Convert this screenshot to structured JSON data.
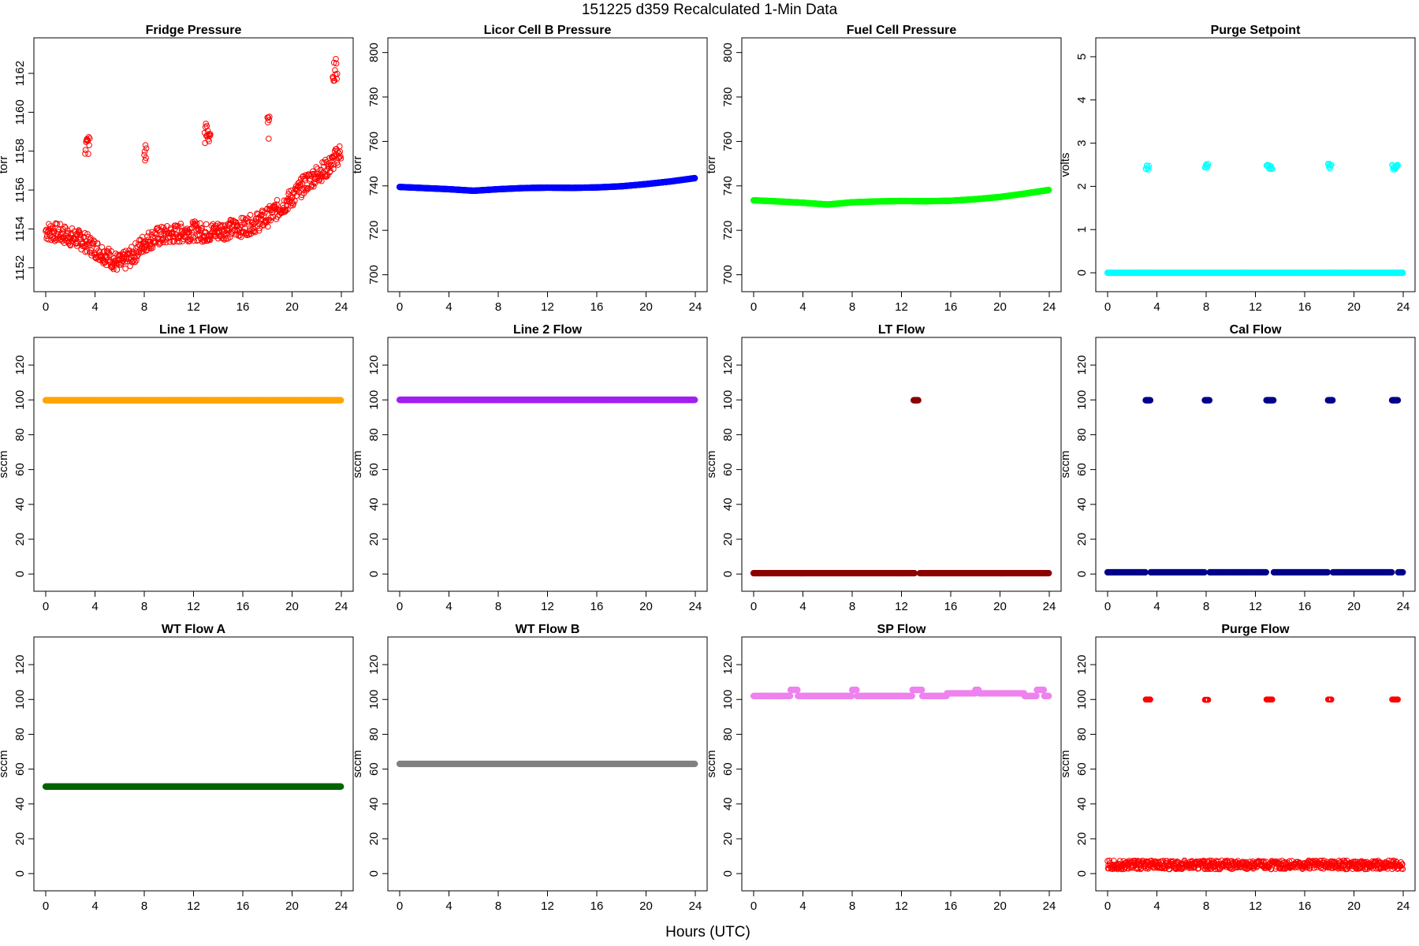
{
  "suptitle": "151225   d359   Recalculated 1-Min Data",
  "xlabel": "Hours (UTC)",
  "chart_data": [
    {
      "type": "scatter",
      "title": "Fridge Pressure",
      "ylabel": "torr",
      "color": "#ff0000",
      "marker": "open-circle",
      "xlim": [
        0,
        24
      ],
      "ylim": [
        1151.3,
        1163.3
      ],
      "xticks": [
        0,
        4,
        8,
        12,
        16,
        20,
        24
      ],
      "yticks": [
        1152,
        1154,
        1156,
        1158,
        1160,
        1162
      ],
      "series": [
        {
          "x": [
            0,
            1,
            2,
            3,
            4,
            5,
            6,
            7,
            8,
            9,
            10,
            11,
            12,
            13,
            14,
            15,
            16,
            17,
            18,
            19,
            20,
            21,
            22,
            23,
            23.5,
            24
          ],
          "y": [
            1153.9,
            1153.8,
            1153.6,
            1153.4,
            1153.0,
            1152.6,
            1152.2,
            1152.6,
            1153.3,
            1153.6,
            1153.7,
            1153.8,
            1153.9,
            1153.8,
            1153.9,
            1154.0,
            1154.1,
            1154.3,
            1154.6,
            1155.1,
            1155.6,
            1156.3,
            1156.8,
            1157.2,
            1157.6,
            1158.0
          ]
        },
        {
          "x": [
            3.2,
            3.6
          ],
          "y": [
            1158.3,
            1158.3
          ]
        },
        {
          "x": [
            8.0,
            8.2
          ],
          "y": [
            1157.9,
            1157.9
          ]
        },
        {
          "x": [
            12.9,
            13.4
          ],
          "y": [
            1158.9,
            1158.9
          ]
        },
        {
          "x": [
            18.0,
            18.2
          ],
          "y": [
            1159.2,
            1159.2
          ]
        },
        {
          "x": [
            23.3,
            23.7
          ],
          "y": [
            1162.2,
            1162.2
          ]
        }
      ]
    },
    {
      "type": "scatter",
      "title": "Licor Cell B Pressure",
      "ylabel": "torr",
      "color": "#0000ff",
      "marker": "filled",
      "xlim": [
        0,
        24
      ],
      "ylim": [
        697,
        802
      ],
      "xticks": [
        0,
        4,
        8,
        12,
        16,
        20,
        24
      ],
      "yticks": [
        700,
        720,
        740,
        760,
        780,
        800
      ],
      "series": [
        {
          "x": [
            0,
            2,
            4,
            6,
            8,
            10,
            12,
            14,
            16,
            18,
            20,
            22,
            24
          ],
          "y": [
            739.5,
            739,
            738.5,
            737.8,
            738.5,
            739,
            739.2,
            739.1,
            739.3,
            739.8,
            740.8,
            742,
            743.5
          ]
        }
      ]
    },
    {
      "type": "scatter",
      "title": "Fuel Cell Pressure",
      "ylabel": "torr",
      "color": "#00ff00",
      "marker": "filled",
      "xlim": [
        0,
        24
      ],
      "ylim": [
        697,
        802
      ],
      "xticks": [
        0,
        4,
        8,
        12,
        16,
        20,
        24
      ],
      "yticks": [
        700,
        720,
        740,
        760,
        780,
        800
      ],
      "series": [
        {
          "x": [
            0,
            2,
            4,
            6,
            8,
            10,
            12,
            14,
            16,
            18,
            20,
            22,
            24
          ],
          "y": [
            733.5,
            733,
            732.4,
            731.6,
            732.6,
            733,
            733.2,
            733.1,
            733.3,
            734,
            735,
            736.5,
            738.2
          ]
        }
      ]
    },
    {
      "type": "scatter",
      "title": "Purge Setpoint",
      "ylabel": "volts",
      "color": "#00ffff",
      "marker": "mixed",
      "xlim": [
        0,
        24
      ],
      "ylim": [
        -0.2,
        5.2
      ],
      "xticks": [
        0,
        4,
        8,
        12,
        16,
        20,
        24
      ],
      "yticks": [
        0,
        1,
        2,
        3,
        4,
        5
      ],
      "series": [
        {
          "x": [
            0,
            24
          ],
          "y": [
            0,
            0
          ]
        },
        {
          "x": [
            3.1,
            3.4
          ],
          "y": [
            2.45,
            2.45
          ]
        },
        {
          "x": [
            7.9,
            8.2
          ],
          "y": [
            2.47,
            2.47
          ]
        },
        {
          "x": [
            12.9,
            13.4
          ],
          "y": [
            2.44,
            2.44
          ]
        },
        {
          "x": [
            17.9,
            18.2
          ],
          "y": [
            2.47,
            2.47
          ]
        },
        {
          "x": [
            23.1,
            23.6
          ],
          "y": [
            2.44,
            2.44
          ]
        }
      ]
    },
    {
      "type": "scatter",
      "title": "Line 1 Flow",
      "ylabel": "sccm",
      "color": "#ffa500",
      "marker": "filled",
      "xlim": [
        0,
        24
      ],
      "ylim": [
        -4,
        130
      ],
      "xticks": [
        0,
        4,
        8,
        12,
        16,
        20,
        24
      ],
      "yticks": [
        0,
        20,
        40,
        60,
        80,
        100,
        120
      ],
      "series": [
        {
          "x": [
            0,
            24
          ],
          "y": [
            99.8,
            99.8
          ]
        }
      ]
    },
    {
      "type": "scatter",
      "title": "Line 2 Flow",
      "ylabel": "sccm",
      "color": "#a020f0",
      "marker": "filled",
      "xlim": [
        0,
        24
      ],
      "ylim": [
        -4,
        130
      ],
      "xticks": [
        0,
        4,
        8,
        12,
        16,
        20,
        24
      ],
      "yticks": [
        0,
        20,
        40,
        60,
        80,
        100,
        120
      ],
      "series": [
        {
          "x": [
            0,
            24
          ],
          "y": [
            100,
            100
          ]
        }
      ]
    },
    {
      "type": "scatter",
      "title": "LT Flow",
      "ylabel": "sccm",
      "color": "#8b0000",
      "marker": "filled",
      "xlim": [
        0,
        24
      ],
      "ylim": [
        -4,
        130
      ],
      "xticks": [
        0,
        4,
        8,
        12,
        16,
        20,
        24
      ],
      "yticks": [
        0,
        20,
        40,
        60,
        80,
        100,
        120
      ],
      "series": [
        {
          "x": [
            0,
            13.1
          ],
          "y": [
            0.5,
            0.5
          ]
        },
        {
          "x": [
            13.5,
            24
          ],
          "y": [
            0.5,
            0.5
          ]
        },
        {
          "x": [
            13.0,
            13.4
          ],
          "y": [
            99.8,
            99.8
          ]
        }
      ]
    },
    {
      "type": "scatter",
      "title": "Cal Flow",
      "ylabel": "sccm",
      "color": "#00008b",
      "marker": "filled",
      "xlim": [
        0,
        24
      ],
      "ylim": [
        -4,
        130
      ],
      "xticks": [
        0,
        4,
        8,
        12,
        16,
        20,
        24
      ],
      "yticks": [
        0,
        20,
        40,
        60,
        80,
        100,
        120
      ],
      "series": [
        {
          "x": [
            0,
            3.1
          ],
          "y": [
            1,
            1
          ]
        },
        {
          "x": [
            3.5,
            7.9
          ],
          "y": [
            1,
            1
          ]
        },
        {
          "x": [
            8.3,
            12.9
          ],
          "y": [
            1,
            1
          ]
        },
        {
          "x": [
            13.5,
            17.9
          ],
          "y": [
            1,
            1
          ]
        },
        {
          "x": [
            18.3,
            23.1
          ],
          "y": [
            1,
            1
          ]
        },
        {
          "x": [
            23.6,
            24
          ],
          "y": [
            1,
            1
          ]
        },
        {
          "x": [
            3.1,
            3.5
          ],
          "y": [
            99.8,
            99.8
          ]
        },
        {
          "x": [
            7.9,
            8.3
          ],
          "y": [
            99.8,
            99.8
          ]
        },
        {
          "x": [
            12.9,
            13.5
          ],
          "y": [
            99.8,
            99.8
          ]
        },
        {
          "x": [
            17.9,
            18.3
          ],
          "y": [
            99.8,
            99.8
          ]
        },
        {
          "x": [
            23.1,
            23.6
          ],
          "y": [
            99.8,
            99.8
          ]
        }
      ]
    },
    {
      "type": "scatter",
      "title": "WT Flow A",
      "ylabel": "sccm",
      "color": "#006400",
      "marker": "filled",
      "xlim": [
        0,
        24
      ],
      "ylim": [
        -4,
        130
      ],
      "xticks": [
        0,
        4,
        8,
        12,
        16,
        20,
        24
      ],
      "yticks": [
        0,
        20,
        40,
        60,
        80,
        100,
        120
      ],
      "series": [
        {
          "x": [
            0,
            24
          ],
          "y": [
            50,
            50
          ]
        }
      ]
    },
    {
      "type": "scatter",
      "title": "WT Flow B",
      "ylabel": "sccm",
      "color": "#808080",
      "marker": "filled",
      "xlim": [
        0,
        24
      ],
      "ylim": [
        -4,
        130
      ],
      "xticks": [
        0,
        4,
        8,
        12,
        16,
        20,
        24
      ],
      "yticks": [
        0,
        20,
        40,
        60,
        80,
        100,
        120
      ],
      "series": [
        {
          "x": [
            0,
            24
          ],
          "y": [
            63,
            63
          ]
        }
      ]
    },
    {
      "type": "scatter",
      "title": "SP Flow",
      "ylabel": "sccm",
      "color": "#ee82ee",
      "marker": "filled",
      "xlim": [
        0,
        24
      ],
      "ylim": [
        -4,
        130
      ],
      "xticks": [
        0,
        4,
        8,
        12,
        16,
        20,
        24
      ],
      "yticks": [
        0,
        20,
        40,
        60,
        80,
        100,
        120
      ],
      "series": [
        {
          "x": [
            0,
            3.0
          ],
          "y": [
            102,
            102
          ]
        },
        {
          "x": [
            3.0,
            3.6
          ],
          "y": [
            105.5,
            105.5
          ]
        },
        {
          "x": [
            3.6,
            8.0
          ],
          "y": [
            102,
            102
          ]
        },
        {
          "x": [
            8.0,
            8.4
          ],
          "y": [
            105.5,
            105.5
          ]
        },
        {
          "x": [
            8.4,
            12.9
          ],
          "y": [
            102,
            102
          ]
        },
        {
          "x": [
            12.9,
            13.7
          ],
          "y": [
            105.5,
            105.5
          ]
        },
        {
          "x": [
            13.7,
            15.7
          ],
          "y": [
            102,
            102
          ]
        },
        {
          "x": [
            15.7,
            18.0
          ],
          "y": [
            103.5,
            103.5
          ]
        },
        {
          "x": [
            18.0,
            18.3
          ],
          "y": [
            105.5,
            105.5
          ]
        },
        {
          "x": [
            18.3,
            22.0
          ],
          "y": [
            103.5,
            103.5
          ]
        },
        {
          "x": [
            22.0,
            23.0
          ],
          "y": [
            102,
            102
          ]
        },
        {
          "x": [
            23.0,
            23.6
          ],
          "y": [
            105.5,
            105.5
          ]
        },
        {
          "x": [
            23.6,
            24
          ],
          "y": [
            102,
            102
          ]
        }
      ]
    },
    {
      "type": "scatter",
      "title": "Purge Flow",
      "ylabel": "sccm",
      "color": "#ff0000",
      "marker": "open-circle",
      "xlim": [
        0,
        24
      ],
      "ylim": [
        -4,
        130
      ],
      "xticks": [
        0,
        4,
        8,
        12,
        16,
        20,
        24
      ],
      "yticks": [
        0,
        20,
        40,
        60,
        80,
        100,
        120
      ],
      "series": [
        {
          "x": [
            0,
            24
          ],
          "y": [
            5,
            5
          ]
        },
        {
          "x": [
            3.1,
            3.5
          ],
          "y": [
            100,
            100
          ]
        },
        {
          "x": [
            7.9,
            8.2
          ],
          "y": [
            99.8,
            99.8
          ]
        },
        {
          "x": [
            12.9,
            13.4
          ],
          "y": [
            100,
            100
          ]
        },
        {
          "x": [
            17.9,
            18.2
          ],
          "y": [
            100,
            100
          ]
        },
        {
          "x": [
            23.1,
            23.6
          ],
          "y": [
            100,
            100
          ]
        }
      ]
    }
  ]
}
